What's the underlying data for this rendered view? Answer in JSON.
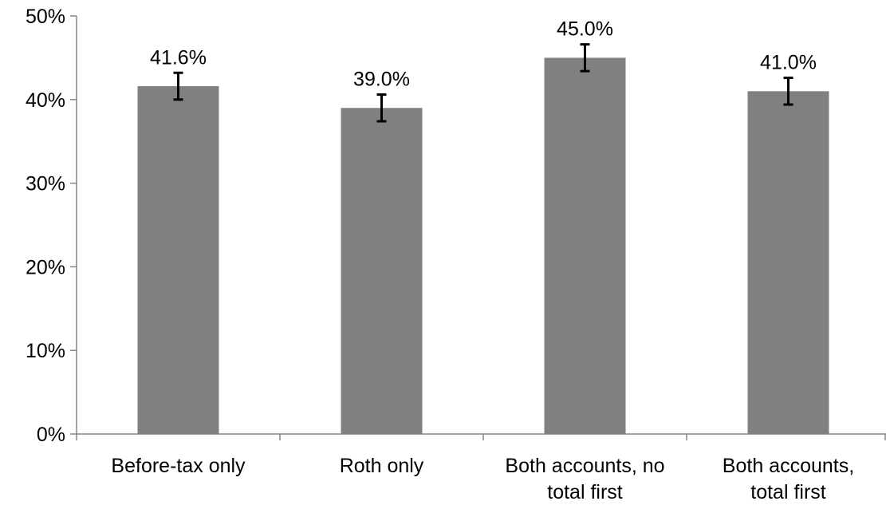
{
  "chart_data": {
    "type": "bar",
    "categories": [
      [
        "Before-tax only"
      ],
      [
        "Roth only"
      ],
      [
        "Both accounts, no",
        "total first"
      ],
      [
        "Both accounts,",
        "total first"
      ]
    ],
    "values": [
      41.6,
      39.0,
      45.0,
      41.0
    ],
    "data_labels": [
      "41.6%",
      "39.0%",
      "45.0%",
      "41.0%"
    ],
    "error_low": [
      40.0,
      37.4,
      43.4,
      39.4
    ],
    "error_high": [
      43.2,
      40.6,
      46.6,
      42.6
    ],
    "ylim": [
      0,
      50
    ],
    "yticks": [
      0,
      10,
      20,
      30,
      40,
      50
    ],
    "ytick_labels": [
      "0%",
      "10%",
      "20%",
      "30%",
      "40%",
      "50%"
    ],
    "title": "",
    "xlabel": "",
    "ylabel": "",
    "grid": false,
    "legend": "none",
    "colors": {
      "bar": "#808080",
      "axis": "#868686",
      "error_bar": "#000000",
      "text": "#000000"
    }
  }
}
